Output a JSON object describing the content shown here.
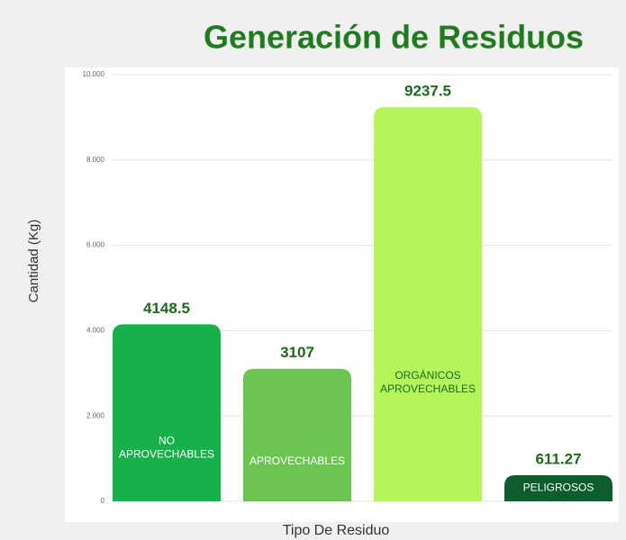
{
  "chart_data": {
    "type": "bar",
    "title": "Generación de Residuos",
    "x_label": "Tipo De Residuo",
    "y_label": "Cantidad (Kg)",
    "categories": [
      "NO APROVECHABLES",
      "APROVECHABLES",
      "ORGÁNICOS APROVECHABLES",
      "PELIGROSOS"
    ],
    "values": [
      4148.5,
      3107,
      9237.5,
      611.27
    ],
    "colors": [
      "#17b14c",
      "#6cc551",
      "#b6f45c",
      "#0d5e2c"
    ],
    "category_label_colors": [
      "#ffffff",
      "#ffffff",
      "#1e6b1e",
      "#ffffff"
    ],
    "ylim": [
      0,
      10000
    ],
    "yticks": [
      0,
      {
        "value": 2000,
        "label": "2.000"
      },
      {
        "value": 4000,
        "label": "4.000"
      },
      {
        "value": 6000,
        "label": "6.000"
      },
      {
        "value": 8000,
        "label": "8.000"
      },
      {
        "value": 10000,
        "label": "10.000"
      }
    ],
    "grid": true
  }
}
